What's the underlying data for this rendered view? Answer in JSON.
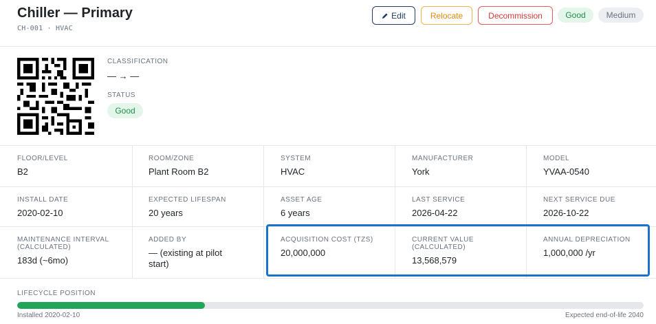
{
  "asset": {
    "title": "Chiller — Primary",
    "subtitle": "CH-001 · HVAC"
  },
  "actions": {
    "edit": "Edit",
    "relocate": "Relocate",
    "decommission": "Decommission"
  },
  "badges": {
    "condition": "Good",
    "criticality": "Medium"
  },
  "qr": {
    "classification_label": "CLASSIFICATION",
    "classification_value": "— → —",
    "status_label": "STATUS",
    "status_value": "Good"
  },
  "details": {
    "row1": [
      {
        "label": "FLOOR/LEVEL",
        "value": "B2"
      },
      {
        "label": "ROOM/ZONE",
        "value": "Plant Room B2"
      },
      {
        "label": "SYSTEM",
        "value": "HVAC"
      },
      {
        "label": "MANUFACTURER",
        "value": "York"
      },
      {
        "label": "MODEL",
        "value": "YVAA-0540"
      }
    ],
    "row2": [
      {
        "label": "INSTALL DATE",
        "value": "2020-02-10"
      },
      {
        "label": "EXPECTED LIFESPAN",
        "value": "20 years"
      },
      {
        "label": "ASSET AGE",
        "value": "6 years"
      },
      {
        "label": "LAST SERVICE",
        "value": "2026-04-22"
      },
      {
        "label": "NEXT SERVICE DUE",
        "value": "2026-10-22"
      }
    ],
    "row3": [
      {
        "label": "MAINTENANCE INTERVAL (CALCULATED)",
        "value": "183d (~6mo)"
      },
      {
        "label": "ADDED BY",
        "value": "— (existing at pilot start)"
      },
      {
        "label": "ACQUISITION COST (TZS)",
        "value": "20,000,000"
      },
      {
        "label": "CURRENT VALUE (CALCULATED)",
        "value": "13,568,579"
      },
      {
        "label": "ANNUAL DEPRECIATION",
        "value": "1,000,000 /yr"
      }
    ]
  },
  "lifecycle": {
    "label": "LIFECYCLE POSITION",
    "progress_fraction": 0.3,
    "start_text": "Installed 2020-02-10",
    "end_text": "Expected end-of-life 2040"
  },
  "colors": {
    "good": "#1f8f4a",
    "progress": "#22a559",
    "highlight": "#1a73c9"
  }
}
